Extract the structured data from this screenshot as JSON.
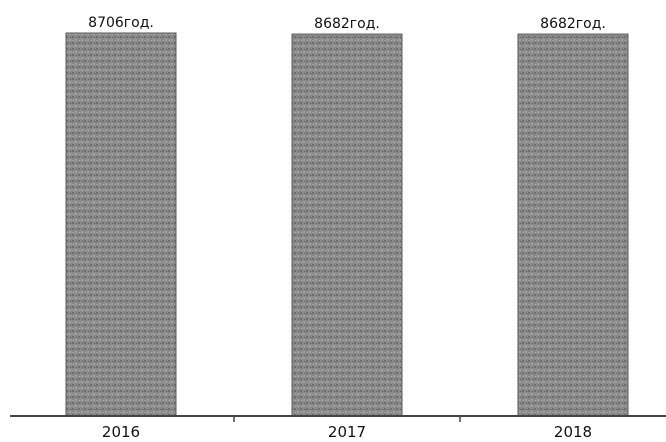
{
  "chart_data": {
    "type": "bar",
    "categories": [
      "2016",
      "2017",
      "2018"
    ],
    "values": [
      8706,
      8682,
      8682
    ],
    "value_labels": [
      "8706год.",
      "8682год.",
      "8682год."
    ],
    "title": "",
    "xlabel": "",
    "ylabel": "",
    "ylim": [
      0,
      8706
    ],
    "grid": false,
    "legend": "none",
    "colors": {
      "bar": "#8a8a8a",
      "bar_texture": "#5a5a5a",
      "axis": "#444444",
      "text": "#111111"
    }
  }
}
